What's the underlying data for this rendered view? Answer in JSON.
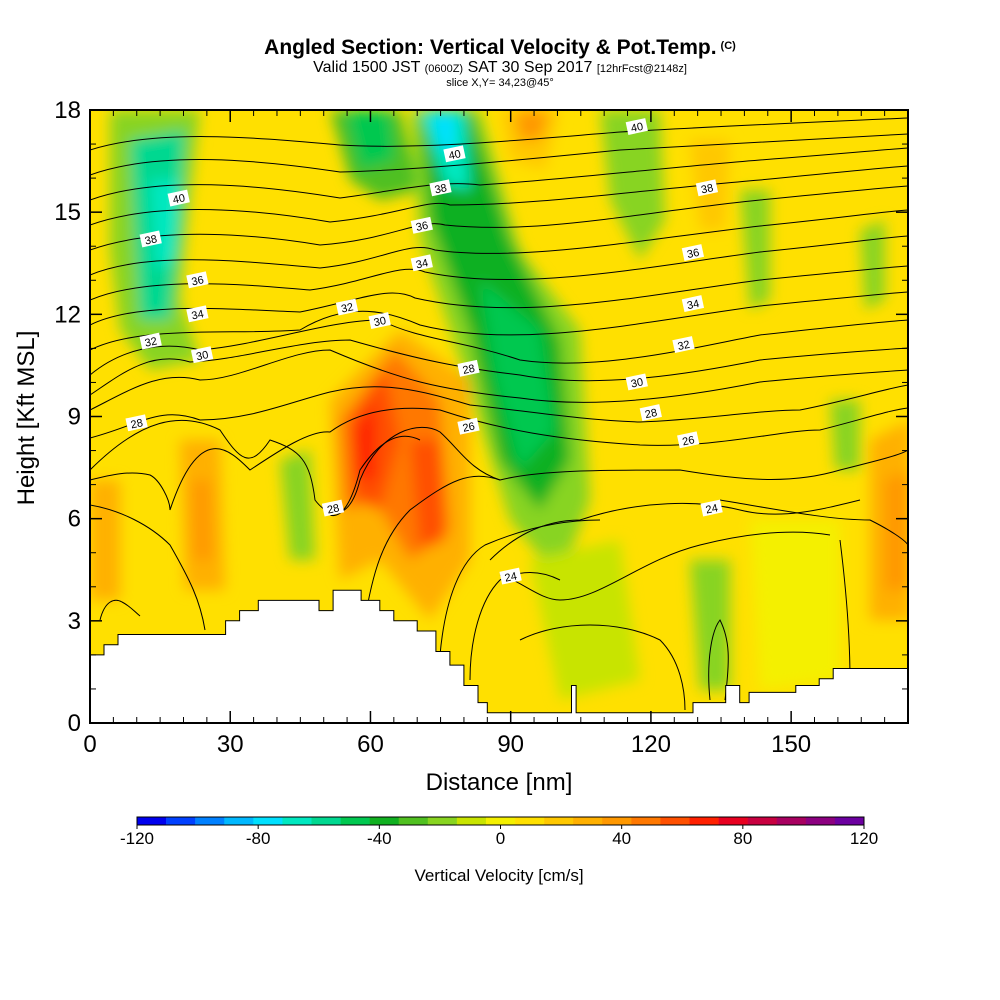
{
  "title": {
    "main": "Angled Section: Vertical Velocity & Pot.Temp.",
    "main_unit": "(C)",
    "valid_prefix": "Valid 1500 JST",
    "valid_utc": "(0600Z)",
    "valid_date": "SAT 30 Sep 2017",
    "forecast": "[12hrFcst@2148z]",
    "slice": "slice X,Y= 34,23@45°"
  },
  "chart_data": {
    "type": "heatmap",
    "xlabel": "Distance [nm]",
    "ylabel": "Height [Kft MSL]",
    "xlim": [
      0,
      175
    ],
    "ylim": [
      0,
      18
    ],
    "x_ticks": [
      0,
      30,
      60,
      90,
      120,
      150
    ],
    "y_ticks": [
      0,
      3,
      6,
      9,
      12,
      15,
      18
    ],
    "colorbar": {
      "label": "Vertical Velocity [cm/s]",
      "range": [
        -120,
        120
      ],
      "tick_labels": [
        "-120",
        "-80",
        "-40",
        "0",
        "40",
        "80",
        "120"
      ],
      "colors": [
        "#0000ee",
        "#0040ff",
        "#0080ff",
        "#00b8ff",
        "#00e0ff",
        "#00e8c0",
        "#00d890",
        "#00c850",
        "#10b020",
        "#50c020",
        "#88d420",
        "#c8e400",
        "#f4f000",
        "#ffe000",
        "#ffc800",
        "#ffb000",
        "#ff9800",
        "#ff7800",
        "#ff5000",
        "#ff2000",
        "#e80020",
        "#c80040",
        "#a80060",
        "#8c0080",
        "#6c00a0"
      ]
    },
    "theta_contour_labels": [
      {
        "value": "40",
        "x": 19,
        "y": 15.4
      },
      {
        "value": "38",
        "x": 13,
        "y": 14.2
      },
      {
        "value": "36",
        "x": 23,
        "y": 13.0
      },
      {
        "value": "34",
        "x": 23,
        "y": 12.0
      },
      {
        "value": "32",
        "x": 13,
        "y": 11.2
      },
      {
        "value": "30",
        "x": 24,
        "y": 10.8
      },
      {
        "value": "28",
        "x": 10,
        "y": 8.8
      },
      {
        "value": "28",
        "x": 52,
        "y": 6.3
      },
      {
        "value": "32",
        "x": 55,
        "y": 12.2
      },
      {
        "value": "30",
        "x": 62,
        "y": 11.8
      },
      {
        "value": "34",
        "x": 71,
        "y": 13.5
      },
      {
        "value": "36",
        "x": 71,
        "y": 14.6
      },
      {
        "value": "38",
        "x": 75,
        "y": 15.7
      },
      {
        "value": "40",
        "x": 78,
        "y": 16.7
      },
      {
        "value": "28",
        "x": 81,
        "y": 10.4
      },
      {
        "value": "26",
        "x": 81,
        "y": 8.7
      },
      {
        "value": "24",
        "x": 90,
        "y": 4.3
      },
      {
        "value": "40",
        "x": 117,
        "y": 17.5
      },
      {
        "value": "38",
        "x": 132,
        "y": 15.7
      },
      {
        "value": "36",
        "x": 129,
        "y": 13.8
      },
      {
        "value": "34",
        "x": 129,
        "y": 12.3
      },
      {
        "value": "32",
        "x": 127,
        "y": 11.1
      },
      {
        "value": "30",
        "x": 117,
        "y": 10.0
      },
      {
        "value": "28",
        "x": 120,
        "y": 9.1
      },
      {
        "value": "26",
        "x": 128,
        "y": 8.3
      },
      {
        "value": "24",
        "x": 133,
        "y": 6.3
      }
    ],
    "terrain_heights_kft": [
      [
        0,
        2.0
      ],
      [
        3,
        2.0
      ],
      [
        3,
        2.3
      ],
      [
        6,
        2.3
      ],
      [
        6,
        2.6
      ],
      [
        29,
        2.6
      ],
      [
        29,
        3.0
      ],
      [
        32,
        3.0
      ],
      [
        32,
        3.3
      ],
      [
        36,
        3.3
      ],
      [
        36,
        3.6
      ],
      [
        49,
        3.6
      ],
      [
        49,
        3.3
      ],
      [
        52,
        3.3
      ],
      [
        52,
        3.9
      ],
      [
        58,
        3.9
      ],
      [
        58,
        3.6
      ],
      [
        62,
        3.6
      ],
      [
        62,
        3.3
      ],
      [
        65,
        3.3
      ],
      [
        65,
        3.0
      ],
      [
        70,
        3.0
      ],
      [
        70,
        2.7
      ],
      [
        74,
        2.7
      ],
      [
        74,
        2.1
      ],
      [
        77,
        2.1
      ],
      [
        77,
        1.7
      ],
      [
        80,
        1.7
      ],
      [
        80,
        1.1
      ],
      [
        83,
        1.1
      ],
      [
        83,
        0.6
      ],
      [
        85,
        0.6
      ],
      [
        85,
        0.3
      ],
      [
        103,
        0.3
      ],
      [
        103,
        1.1
      ],
      [
        104,
        1.1
      ],
      [
        104,
        0.3
      ],
      [
        115,
        0.3
      ],
      [
        129,
        0.3
      ],
      [
        129,
        0.6
      ],
      [
        136,
        0.6
      ],
      [
        136,
        1.1
      ],
      [
        139,
        1.1
      ],
      [
        139,
        0.6
      ],
      [
        141,
        0.6
      ],
      [
        141,
        0.9
      ],
      [
        151,
        0.9
      ],
      [
        151,
        1.1
      ],
      [
        156,
        1.1
      ],
      [
        156,
        1.3
      ],
      [
        159,
        1.3
      ],
      [
        159,
        1.6
      ],
      [
        175,
        1.6
      ]
    ]
  }
}
